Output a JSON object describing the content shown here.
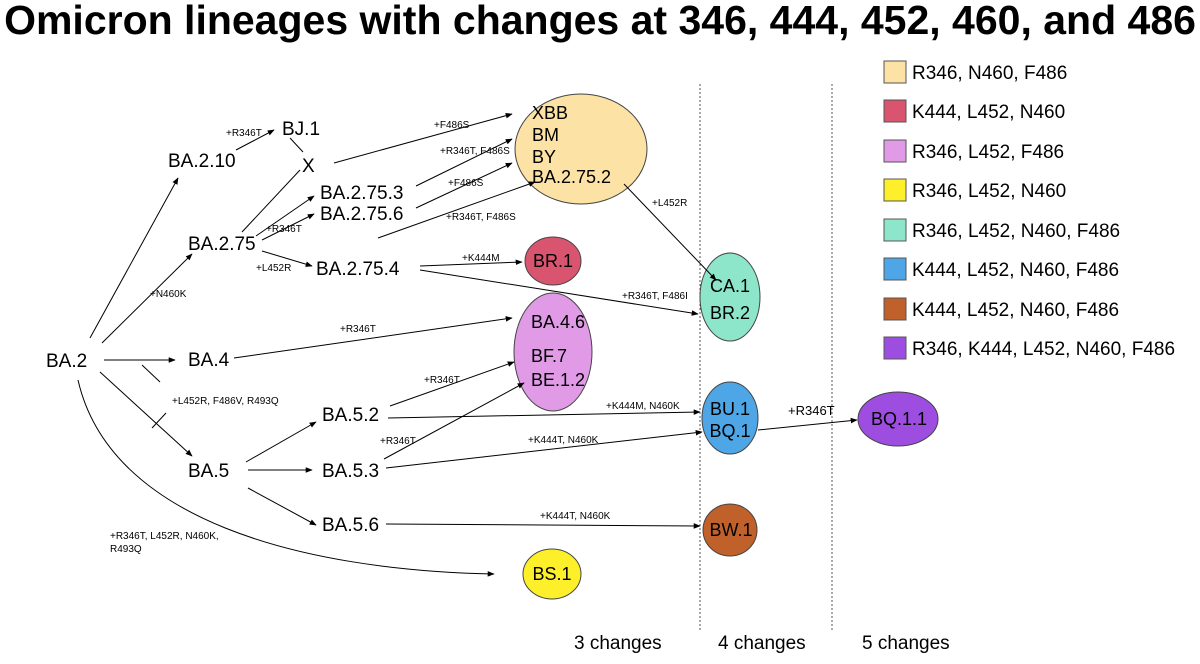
{
  "title": "Omicron lineages with changes at 346, 444, 452, 460, and 486",
  "nodes": {
    "ba2": "BA.2",
    "ba210": "BA.2.10",
    "bj1": "BJ.1",
    "x": "X",
    "ba275": "BA.2.75",
    "ba2753": "BA.2.75.3",
    "ba2756": "BA.2.75.6",
    "ba2754": "BA.2.75.4",
    "ba4": "BA.4",
    "ba5": "BA.5",
    "ba52": "BA.5.2",
    "ba53": "BA.5.3",
    "ba56": "BA.5.6"
  },
  "groups": {
    "xbb_group": {
      "labels": [
        "XBB",
        "BM",
        "BY",
        "BA.2.75.2"
      ],
      "color": "#fde2a6"
    },
    "br1": {
      "labels": [
        "BR.1"
      ],
      "color": "#d9556f"
    },
    "ca1_group": {
      "labels": [
        "CA.1",
        "BR.2"
      ],
      "color": "#8de6c9"
    },
    "ba46_group": {
      "labels": [
        "BA.4.6",
        "BF.7",
        "BE.1.2"
      ],
      "color": "#e09ae6"
    },
    "bu1_group": {
      "labels": [
        "BU.1",
        "BQ.1"
      ],
      "color": "#4ea6e6"
    },
    "bq11": {
      "labels": [
        "BQ.1.1"
      ],
      "color": "#9d4ee0"
    },
    "bw1": {
      "labels": [
        "BW.1"
      ],
      "color": "#c0602a"
    },
    "bs1": {
      "labels": [
        "BS.1"
      ],
      "color": "#fdf02a"
    }
  },
  "mutations": {
    "m_r346t_bj1": "+R346T",
    "m_f486s_xbb": "+F486S",
    "m_r346t_f486s_bm": "+R346T, F486S",
    "m_f486s_by": "+F486S",
    "m_r346t_ba2756": "+R346T",
    "m_r346t_f486s_ba2752": "+R346T, F486S",
    "m_l452r_ba2754": "+L452R",
    "m_n460k": "+N460K",
    "m_l452r_ca1": "+L452R",
    "m_k444m_br1": "+K444M",
    "m_r346t_f486i_br2": "+R346T, F486I",
    "m_r346t_ba46": "+R346T",
    "m_ba5": "+L452R, F486V, R493Q",
    "m_r346t_bf7": "+R346T",
    "m_r346t_be12": "+R346T",
    "m_k444m_n460k_bu1": "+K444M, N460K",
    "m_k444t_n460k_bq1": "+K444T, N460K",
    "m_r346t_bq11": "+R346T",
    "m_k444t_n460k_bw1": "+K444T, N460K",
    "m_bs1_line1": "+R346T, L452R, N460K,",
    "m_bs1_line2": "R493Q"
  },
  "legend": [
    {
      "label": "R346, N460, F486",
      "color": "#fde2a6"
    },
    {
      "label": "K444, L452, N460",
      "color": "#d9556f"
    },
    {
      "label": "R346, L452, F486",
      "color": "#e09ae6"
    },
    {
      "label": "R346, L452, N460",
      "color": "#fdf02a"
    },
    {
      "label": "R346, L452, N460, F486",
      "color": "#8de6c9"
    },
    {
      "label": "K444, L452, N460, F486",
      "color": "#4ea6e6"
    },
    {
      "label": "K444, L452, N460, F486",
      "color": "#c0602a"
    },
    {
      "label": "R346, K444, L452, N460, F486",
      "color": "#9d4ee0"
    }
  ],
  "columns": {
    "three": "3 changes",
    "four": "4 changes",
    "five": "5 changes"
  }
}
